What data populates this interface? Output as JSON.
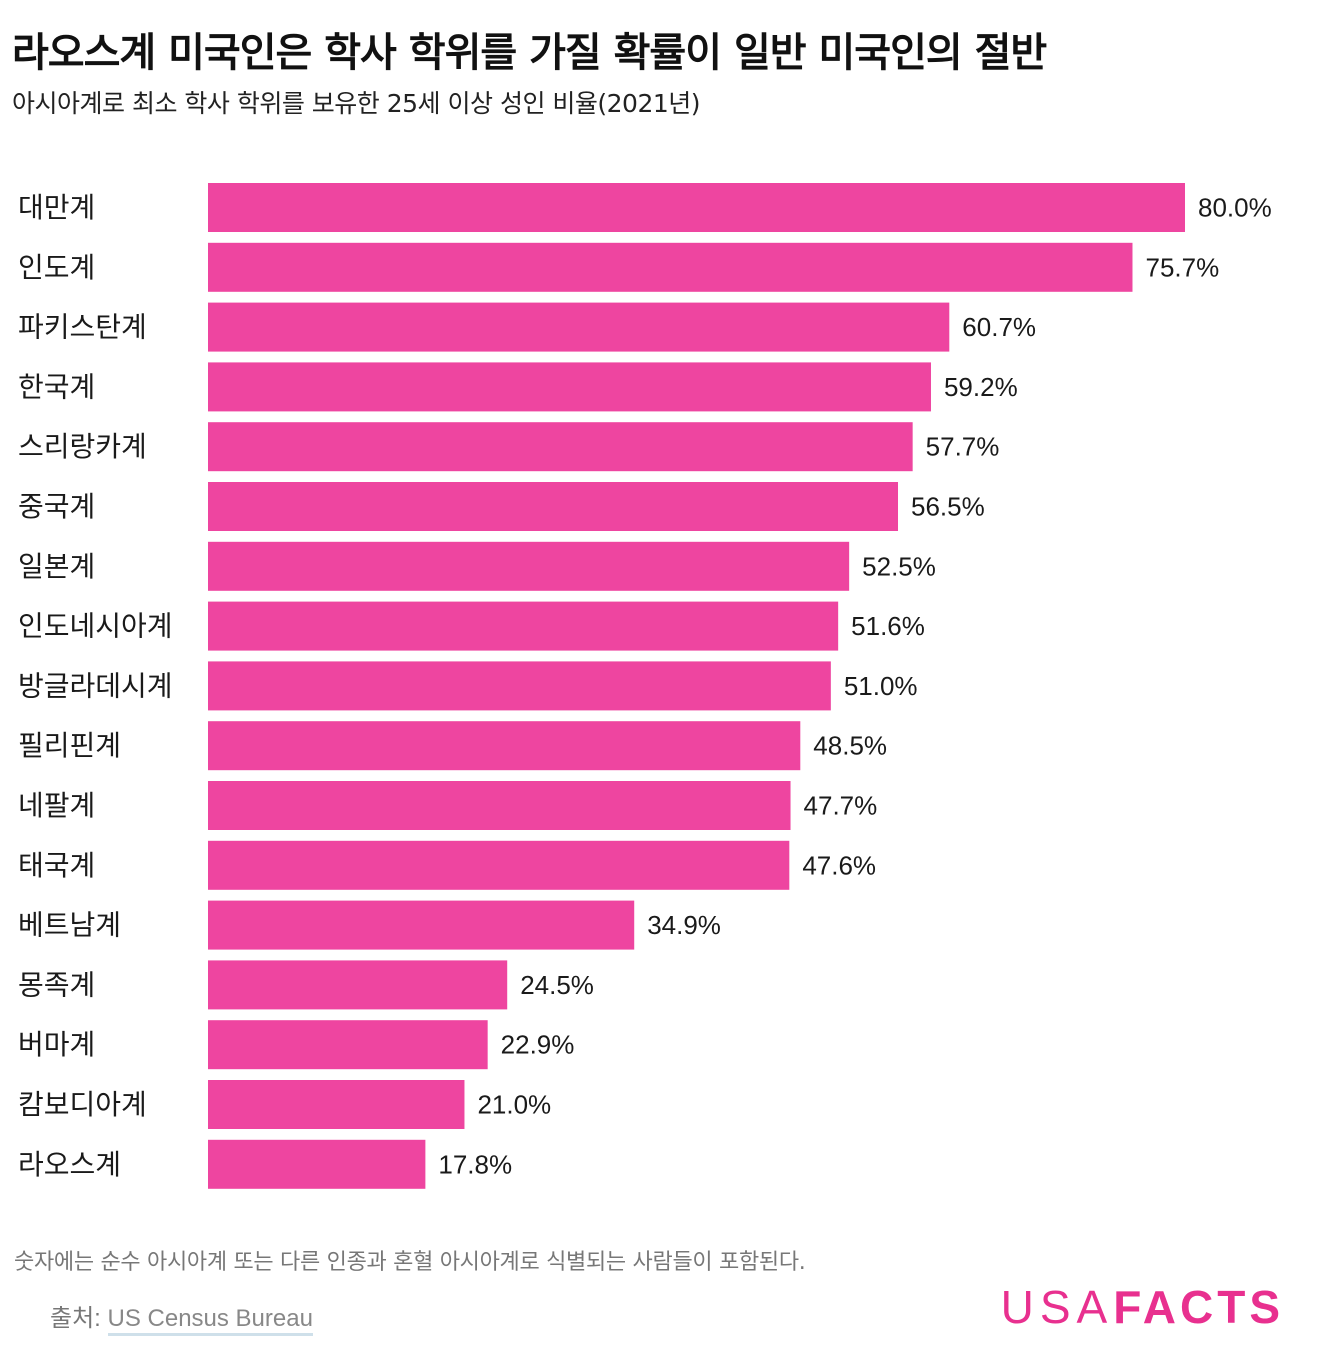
{
  "header": {
    "title": "라오스계 미국인은 학사 학위를 가질 확률이 일반 미국인의 절반",
    "subtitle": "아시아계로 최소 학사 학위를 보유한 25세 이상 성인 비율(2021년)"
  },
  "chart_data": {
    "type": "bar",
    "orientation": "horizontal",
    "title": "라오스계 미국인은 학사 학위를 가질 확률이 일반 미국인의 절반",
    "subtitle": "아시아계로 최소 학사 학위를 보유한 25세 이상 성인 비율(2021년)",
    "categories": [
      "대만계",
      "인도계",
      "파키스탄계",
      "한국계",
      "스리랑카계",
      "중국계",
      "일본계",
      "인도네시아계",
      "방글라데시계",
      "필리핀계",
      "네팔계",
      "태국계",
      "베트남계",
      "몽족계",
      "버마계",
      "캄보디아계",
      "라오스계"
    ],
    "values": [
      80.0,
      75.7,
      60.7,
      59.2,
      57.7,
      56.5,
      52.5,
      51.6,
      51.0,
      48.5,
      47.7,
      47.6,
      34.9,
      24.5,
      22.9,
      21.0,
      17.8
    ],
    "value_labels": [
      "80.0%",
      "75.7%",
      "60.7%",
      "59.2%",
      "57.7%",
      "56.5%",
      "52.5%",
      "51.6%",
      "51.0%",
      "48.5%",
      "47.7%",
      "47.6%",
      "34.9%",
      "24.5%",
      "22.9%",
      "21.0%",
      "17.8%"
    ],
    "unit": "%",
    "xlim": [
      0,
      80
    ],
    "xlabel": "",
    "ylabel": "",
    "grid": false,
    "bar_color": "#ee45a0"
  },
  "footer": {
    "note": "숫자에는 순수 아시아계 또는 다른 인종과 혼혈 아시아계로 식별되는 사람들이 포함된다.",
    "source_prefix": "출처: ",
    "source_link": "US Census Bureau",
    "logo_light": "USA",
    "logo_bold": "FACTS",
    "logo_color": "#e8308f"
  }
}
